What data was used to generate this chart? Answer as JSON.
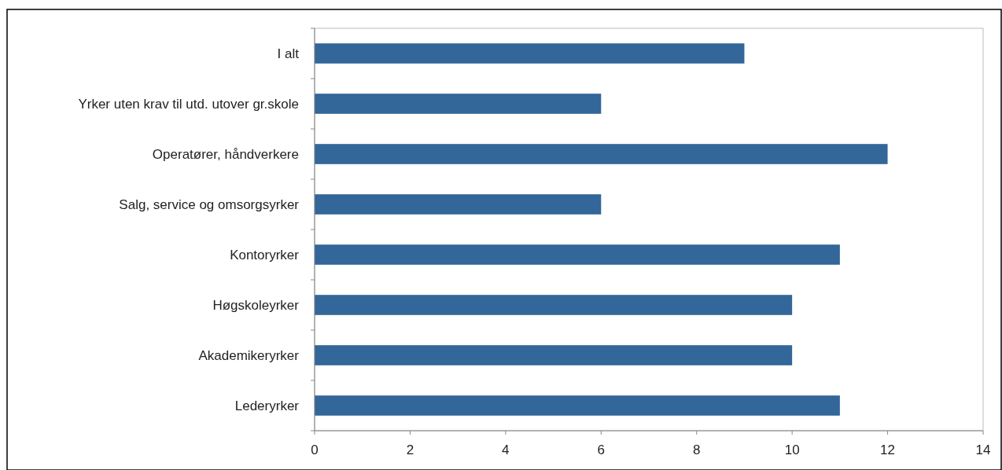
{
  "chart_data": {
    "type": "bar",
    "orientation": "horizontal",
    "categories": [
      "I alt",
      "Yrker uten krav til utd. utover gr.skole",
      "Operatører, håndverkere",
      "Salg, service og omsorgsyrker",
      "Kontoryrker",
      "Høgskoleyrker",
      "Akademikeryrker",
      "Lederyrker"
    ],
    "values": [
      9,
      6,
      12,
      6,
      11,
      10,
      10,
      11
    ],
    "color": "#336699",
    "xlim": [
      0,
      14
    ],
    "xticks": [
      0,
      2,
      4,
      6,
      8,
      10,
      12,
      14
    ],
    "grid": false
  }
}
